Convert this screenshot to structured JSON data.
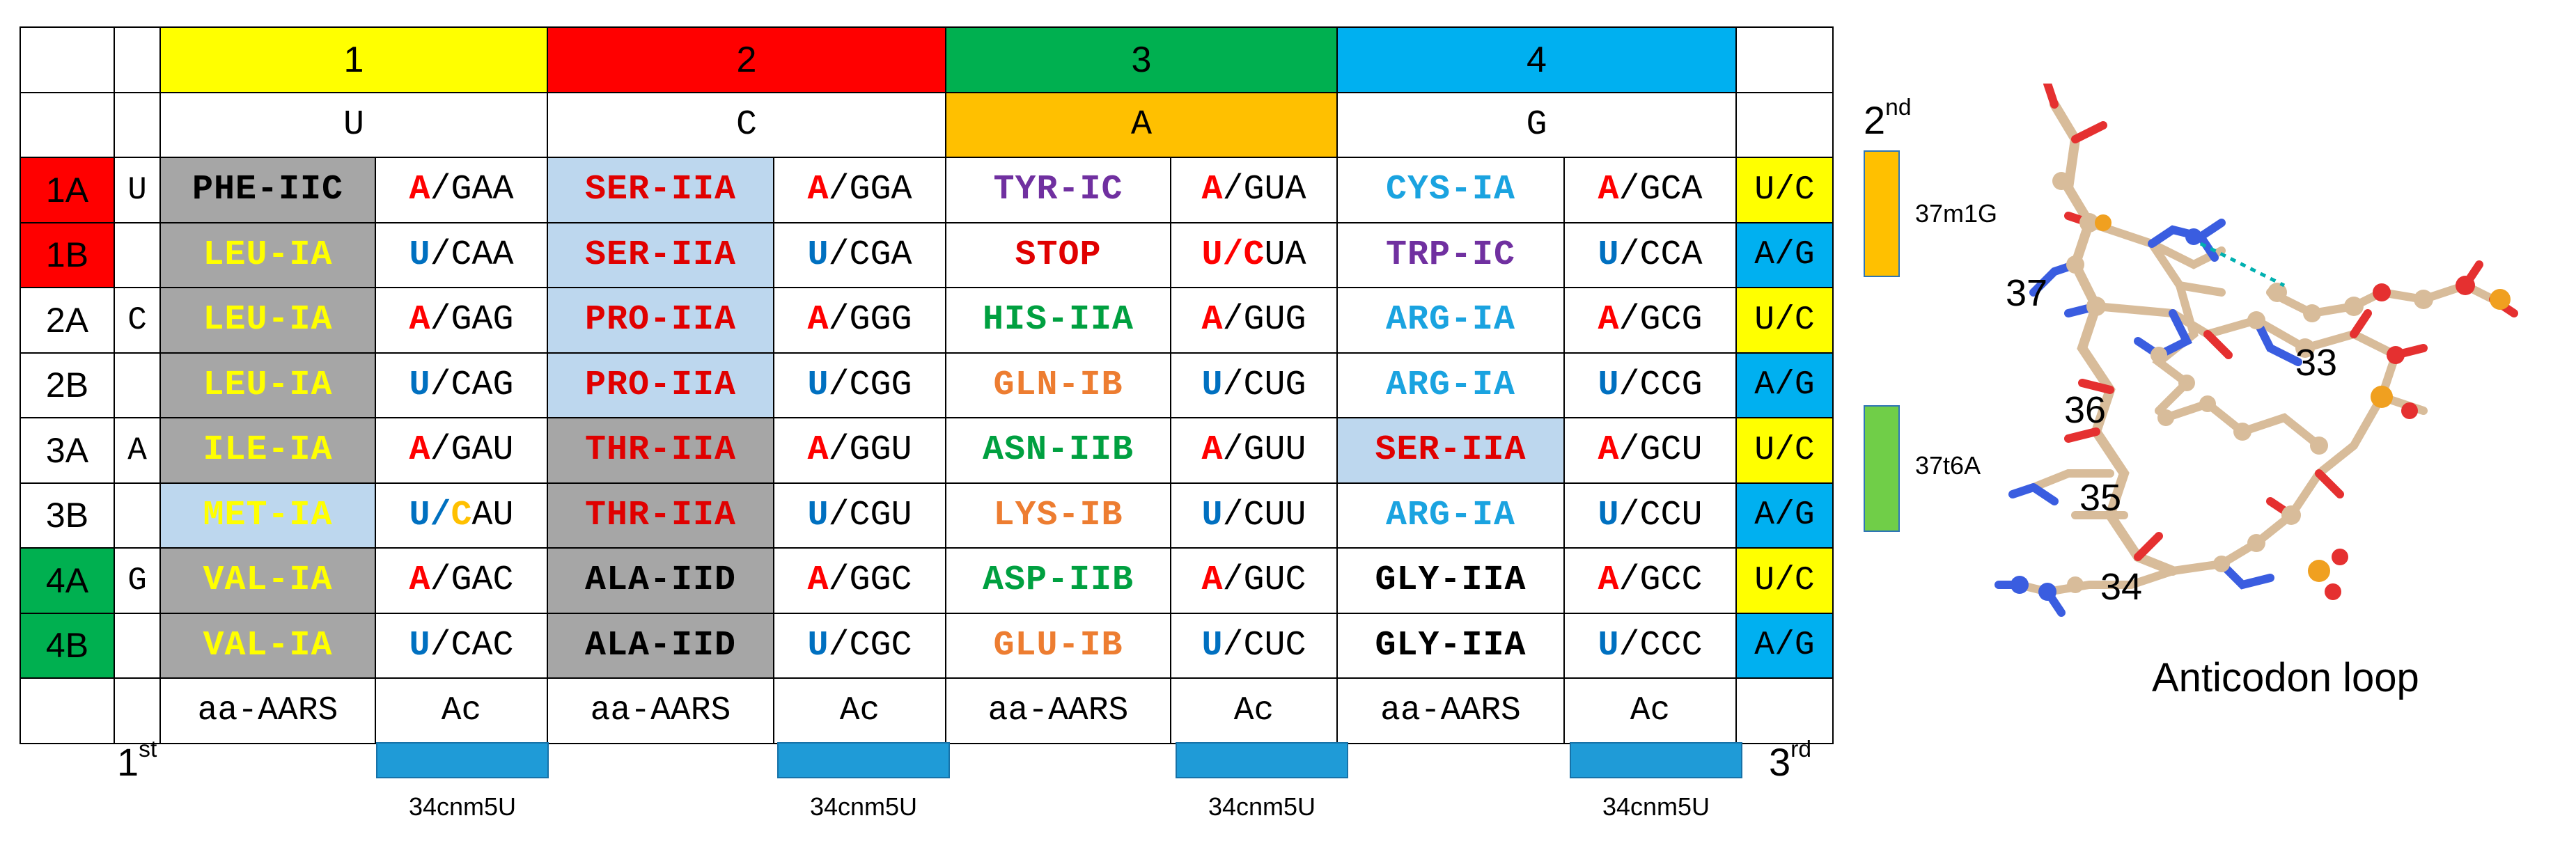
{
  "colors": {
    "yellow": "#ffff00",
    "red": "#ff0000",
    "green": "#00b050",
    "blue": "#00b0f0",
    "orange": "#ffc000",
    "gray": "#a6a6a6",
    "lightblue": "#bdd7ee",
    "purple": "#7030a0",
    "aa_red": "#e00000",
    "aa_green": "#00a040",
    "aa_orange": "#ed7d31",
    "aa_cyan": "#1aa3e0",
    "aa_yellow": "#ffff00",
    "prefix_red": "#ff0000",
    "prefix_blue": "#0070c0",
    "mod_orange": "#ffc000",
    "mod_green": "#70ce48",
    "bar_blue": "#1f9bd7"
  },
  "groups": [
    "1",
    "2",
    "3",
    "4"
  ],
  "second_bases": [
    "U",
    "C",
    "A",
    "G"
  ],
  "first_bases": [
    "U",
    "",
    "C",
    "",
    "A",
    "",
    "G",
    ""
  ],
  "row_labels": [
    "1A",
    "1B",
    "2A",
    "2B",
    "3A",
    "3B",
    "4A",
    "4B"
  ],
  "third_bases": [
    "U/C",
    "A/G",
    "U/C",
    "A/G",
    "U/C",
    "A/G",
    "U/C",
    "A/G"
  ],
  "rows": [
    [
      {
        "aa": "PHE-IIC",
        "prefix": "A",
        "suffix": "/GAA"
      },
      {
        "aa": "SER-IIA",
        "prefix": "A",
        "suffix": "/GGA"
      },
      {
        "aa": "TYR-IC",
        "prefix": "A",
        "suffix": "/GUA"
      },
      {
        "aa": "CYS-IA",
        "prefix": "A",
        "suffix": "/GCA"
      }
    ],
    [
      {
        "aa": "LEU-IA",
        "prefix": "U",
        "suffix": "/CAA"
      },
      {
        "aa": "SER-IIA",
        "prefix": "U",
        "suffix": "/CGA"
      },
      {
        "aa": "STOP",
        "prefix": "U/C",
        "suffix": "UA"
      },
      {
        "aa": "TRP-IC",
        "prefix": "U",
        "suffix": "/CCA"
      }
    ],
    [
      {
        "aa": "LEU-IA",
        "prefix": "A",
        "suffix": "/GAG"
      },
      {
        "aa": "PRO-IIA",
        "prefix": "A",
        "suffix": "/GGG"
      },
      {
        "aa": "HIS-IIA",
        "prefix": "A",
        "suffix": "/GUG"
      },
      {
        "aa": "ARG-IA",
        "prefix": "A",
        "suffix": "/GCG"
      }
    ],
    [
      {
        "aa": "LEU-IA",
        "prefix": "U",
        "suffix": "/CAG"
      },
      {
        "aa": "PRO-IIA",
        "prefix": "U",
        "suffix": "/CGG"
      },
      {
        "aa": "GLN-IB",
        "prefix": "U",
        "suffix": "/CUG"
      },
      {
        "aa": "ARG-IA",
        "prefix": "U",
        "suffix": "/CCG"
      }
    ],
    [
      {
        "aa": "ILE-IA",
        "prefix": "A",
        "suffix": "/GAU"
      },
      {
        "aa": "THR-IIA",
        "prefix": "A",
        "suffix": "/GGU"
      },
      {
        "aa": "ASN-IIB",
        "prefix": "A",
        "suffix": "/GUU"
      },
      {
        "aa": "SER-IIA",
        "prefix": "A",
        "suffix": "/GCU"
      }
    ],
    [
      {
        "aa": "MET-IA",
        "prefix": "U/C",
        "suffix": "AU"
      },
      {
        "aa": "THR-IIA",
        "prefix": "U",
        "suffix": "/CGU"
      },
      {
        "aa": "LYS-IB",
        "prefix": "U",
        "suffix": "/CUU"
      },
      {
        "aa": "ARG-IA",
        "prefix": "U",
        "suffix": "/CCU"
      }
    ],
    [
      {
        "aa": "VAL-IA",
        "prefix": "A",
        "suffix": "/GAC"
      },
      {
        "aa": "ALA-IID",
        "prefix": "A",
        "suffix": "/GGC"
      },
      {
        "aa": "ASP-IIB",
        "prefix": "A",
        "suffix": "/GUC"
      },
      {
        "aa": "GLY-IIA",
        "prefix": "A",
        "suffix": "/GCC"
      }
    ],
    [
      {
        "aa": "VAL-IA",
        "prefix": "U",
        "suffix": "/CAC"
      },
      {
        "aa": "ALA-IID",
        "prefix": "U",
        "suffix": "/CGC"
      },
      {
        "aa": "GLU-IB",
        "prefix": "U",
        "suffix": "/CUC"
      },
      {
        "aa": "GLY-IIA",
        "prefix": "U",
        "suffix": "/CCC"
      }
    ]
  ],
  "footer": {
    "aa_label": "aa-AARS",
    "ac_label": "Ac"
  },
  "axis_labels": {
    "second": "2",
    "second_sup": "nd",
    "first": "1",
    "first_sup": "st",
    "third": "3",
    "third_sup": "rd"
  },
  "mod_34": "34cnm5U",
  "mod_37_top": "37m1G",
  "mod_37_bottom": "37t6A",
  "loop": {
    "caption": "Anticodon loop",
    "nucleotides": [
      "37",
      "36",
      "35",
      "34",
      "33"
    ]
  }
}
